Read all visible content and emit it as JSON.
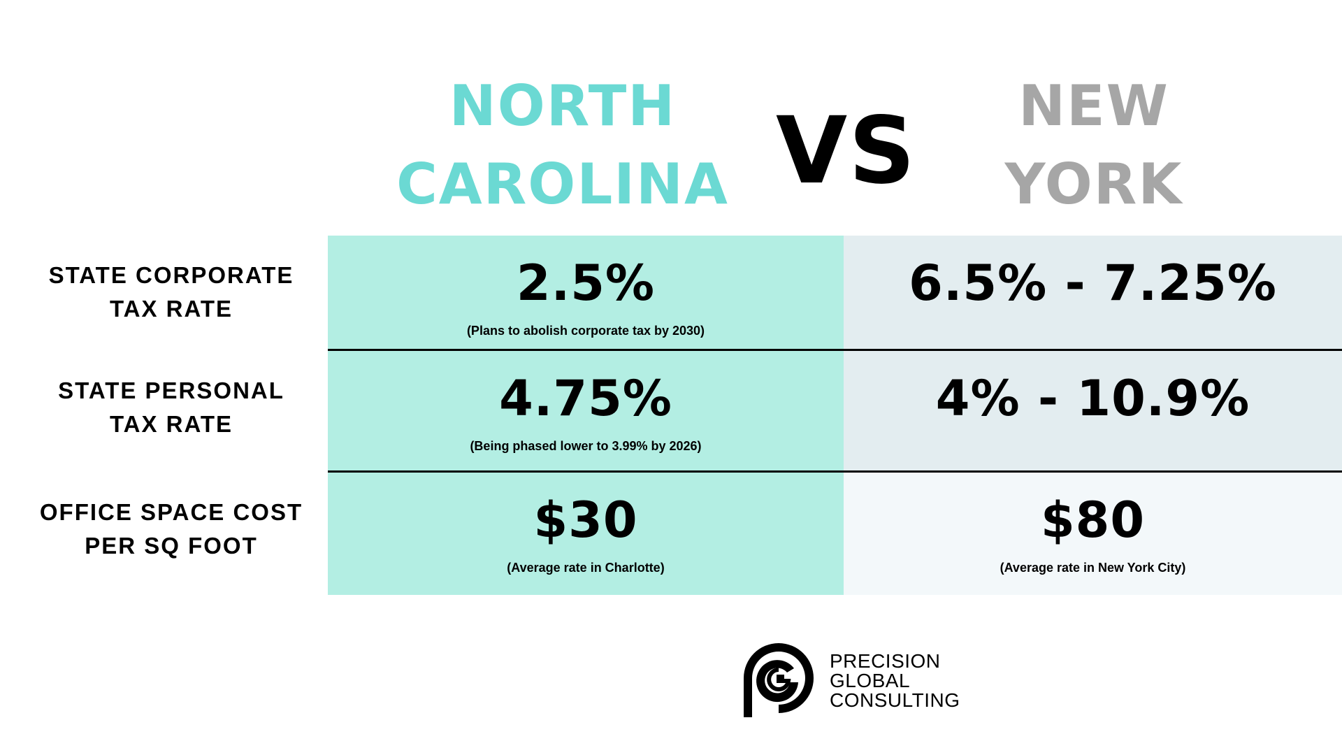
{
  "header": {
    "left_title": [
      "NORTH",
      "CAROLINA"
    ],
    "vs": "VS",
    "right_title": [
      "NEW",
      "YORK"
    ]
  },
  "rows": [
    {
      "label": [
        "STATE CORPORATE",
        "TAX RATE"
      ],
      "nc_value": "2.5%",
      "nc_note": "(Plans to abolish corporate tax by 2030)",
      "ny_value": "6.5% - 7.25%",
      "ny_note": ""
    },
    {
      "label": [
        "STATE PERSONAL",
        "TAX RATE"
      ],
      "nc_value": "4.75%",
      "nc_note": "(Being phased lower to 3.99% by 2026)",
      "ny_value": "4% - 10.9%",
      "ny_note": ""
    },
    {
      "label": [
        "OFFICE SPACE COST",
        "PER SQ FOOT"
      ],
      "nc_value": "$30",
      "nc_note": "(Average rate in Charlotte)",
      "ny_value": "$80",
      "ny_note": "(Average rate in New York City)"
    }
  ],
  "logo": {
    "lines": [
      "PRECISION",
      "GLOBAL",
      "CONSULTING"
    ],
    "mark_icon": "pgc-monogram-icon"
  },
  "colors": {
    "nc_accent": "#6bd9d3",
    "ny_accent": "#a6a6a6",
    "nc_cell": "#b3eee3",
    "ny_cell": "#e3edf0"
  }
}
